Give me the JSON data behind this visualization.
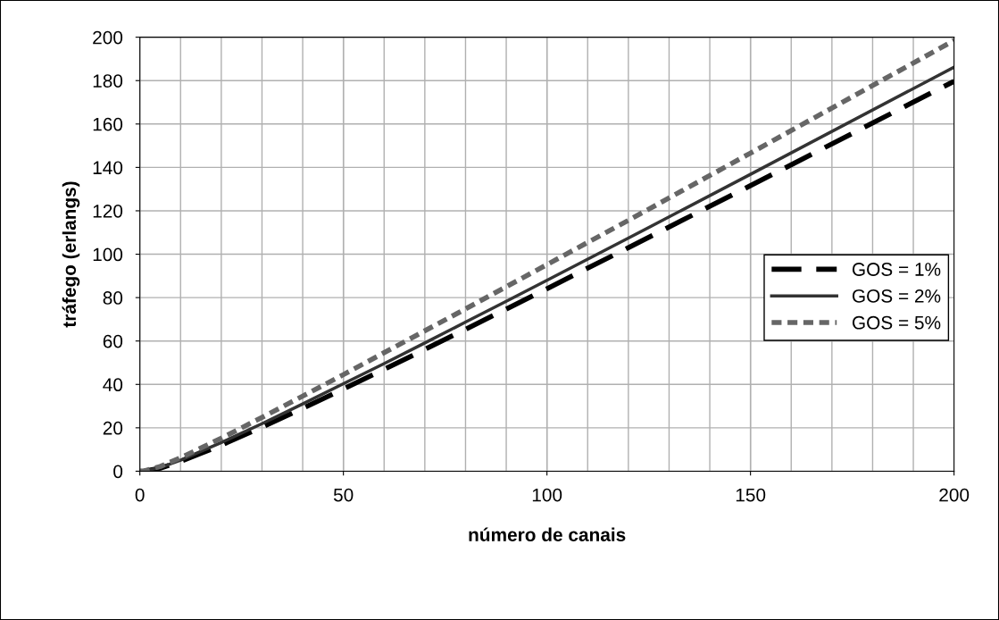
{
  "chart_data": {
    "type": "line",
    "xlabel": "número de canais",
    "ylabel": "tráfego (erlangs)",
    "x": [
      0,
      1,
      5,
      10,
      20,
      30,
      40,
      50,
      60,
      70,
      80,
      90,
      100,
      120,
      150,
      200
    ],
    "series": [
      {
        "name": "GOS = 1%",
        "color": "#000000",
        "line_style": "dashed",
        "values": [
          0,
          0,
          1.4,
          4.5,
          12,
          20.3,
          29,
          37.9,
          46.9,
          56.1,
          65.4,
          74.7,
          84.1,
          103,
          131.6,
          179.7
        ]
      },
      {
        "name": "GOS = 2%",
        "color": "#333333",
        "line_style": "solid",
        "values": [
          0,
          0,
          1.7,
          5.1,
          13.2,
          21.9,
          31,
          40.3,
          49.6,
          59.1,
          68.7,
          78.3,
          88,
          107.4,
          136.8,
          186.2
        ]
      },
      {
        "name": "GOS = 5%",
        "color": "#666666",
        "line_style": "dotted",
        "values": [
          0,
          0.1,
          2.2,
          6.2,
          15.2,
          24.8,
          34.6,
          44.5,
          54.6,
          64.7,
          74.8,
          85,
          95.2,
          115.6,
          146.6,
          198.5
        ]
      }
    ],
    "xlim": [
      0,
      200
    ],
    "ylim": [
      0,
      200
    ],
    "xticks": [
      0,
      50,
      100,
      150,
      200
    ],
    "yticks": [
      0,
      20,
      40,
      60,
      80,
      100,
      120,
      140,
      160,
      180,
      200
    ],
    "grid": true,
    "legend": "right",
    "marker": "none"
  }
}
